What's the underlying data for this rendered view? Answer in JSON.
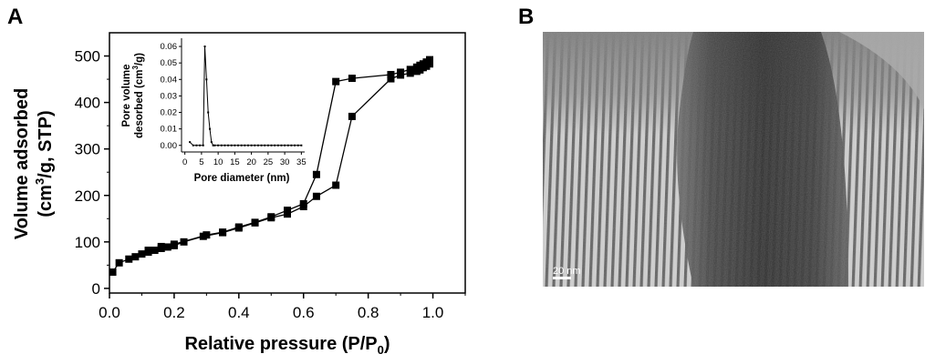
{
  "panels": {
    "a_label": "A",
    "b_label": "B"
  },
  "chart_data": [
    {
      "type": "line",
      "panel": "A",
      "xlabel": "Relative pressure (P/P",
      "xlabel_sub": "0",
      "xlabel_end": ")",
      "ylabel_line1": "Volume adsorbed",
      "ylabel_line2_pre": "(cm",
      "ylabel_line2_sup": "3",
      "ylabel_line2_post": "/g, STP)",
      "xlim": [
        0.0,
        1.1
      ],
      "ylim": [
        -10,
        550
      ],
      "xticks": [
        0.0,
        0.2,
        0.4,
        0.6,
        0.8,
        1.0
      ],
      "xtick_labels": [
        "0.0",
        "0.2",
        "0.4",
        "0.6",
        "0.8",
        "1.0"
      ],
      "yticks": [
        0,
        100,
        200,
        300,
        400,
        500
      ],
      "ytick_labels": [
        "0",
        "100",
        "200",
        "300",
        "400",
        "500"
      ],
      "grid": false,
      "marker": "square",
      "series": [
        {
          "x": [
            0.01,
            0.03,
            0.06,
            0.08,
            0.1,
            0.12,
            0.14,
            0.16,
            0.18,
            0.2,
            0.23,
            0.29,
            0.35,
            0.4,
            0.45,
            0.5,
            0.55,
            0.6,
            0.64,
            0.7,
            0.75,
            0.87,
            0.9,
            0.93,
            0.95,
            0.96,
            0.97,
            0.98,
            0.99
          ],
          "y": [
            35,
            55,
            63,
            68,
            74,
            78,
            82,
            86,
            89,
            92,
            100,
            112,
            120,
            130,
            141,
            152,
            160,
            176,
            198,
            222,
            370,
            451,
            459,
            463,
            467,
            470,
            475,
            478,
            483
          ]
        },
        {
          "x": [
            0.99,
            0.98,
            0.97,
            0.96,
            0.95,
            0.93,
            0.9,
            0.87,
            0.75,
            0.7,
            0.64,
            0.6,
            0.55,
            0.5,
            0.45,
            0.4,
            0.35,
            0.3,
            0.2,
            0.16,
            0.12
          ],
          "y": [
            492,
            487,
            483,
            480,
            476,
            471,
            465,
            460,
            452,
            445,
            245,
            182,
            168,
            154,
            142,
            132,
            121,
            115,
            95,
            90,
            82
          ]
        }
      ]
    },
    {
      "type": "line",
      "panel": "A-inset",
      "xlabel": "Pore diameter (nm)",
      "ylabel_line1": "Pore volume",
      "ylabel_line2_pre": "desorbed (cm",
      "ylabel_line2_sup": "3",
      "ylabel_line2_post": "/g)",
      "xlim": [
        -1,
        36
      ],
      "ylim": [
        -0.004,
        0.065
      ],
      "xticks": [
        0,
        5,
        10,
        15,
        20,
        25,
        30,
        35
      ],
      "xtick_labels": [
        "0",
        "5",
        "10",
        "15",
        "20",
        "25",
        "30",
        "35"
      ],
      "yticks": [
        0.0,
        0.01,
        0.02,
        0.03,
        0.04,
        0.05,
        0.06
      ],
      "ytick_labels": [
        "0.00",
        "0.01",
        "0.02",
        "0.03",
        "0.04",
        "0.05",
        "0.06"
      ],
      "grid": false,
      "series": [
        {
          "x": [
            1.5,
            2.5,
            3.5,
            4.5,
            5.5,
            6.0,
            6.5,
            7.0,
            7.5,
            8.0,
            8.5,
            9,
            10,
            11,
            12,
            13,
            14,
            15,
            16,
            17,
            18,
            19,
            20,
            21,
            22,
            23,
            24,
            25,
            26,
            27,
            28,
            29,
            30,
            31,
            32,
            33,
            34,
            35
          ],
          "y": [
            0.002,
            0.0,
            0.0,
            0.0,
            0.0,
            0.06,
            0.04,
            0.02,
            0.01,
            0.002,
            0.0,
            0,
            0,
            0,
            0,
            0,
            0,
            0,
            0,
            0,
            0,
            0,
            0,
            0,
            0,
            0,
            0,
            0,
            0,
            0,
            0,
            0,
            0,
            0,
            0,
            0,
            0,
            0
          ]
        }
      ]
    }
  ],
  "micrograph": {
    "scale_bar_label": "20 nm"
  }
}
